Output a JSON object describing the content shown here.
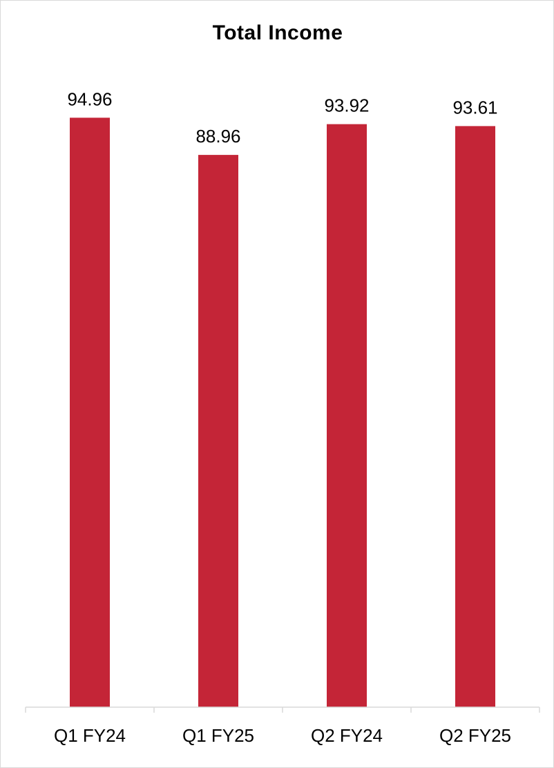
{
  "chart_data": {
    "type": "bar",
    "title": "Total Income",
    "categories": [
      "Q1 FY24",
      "Q1 FY25",
      "Q2 FY24",
      "Q2 FY25"
    ],
    "values": [
      94.96,
      88.96,
      93.92,
      93.61
    ],
    "data_labels": [
      "94.96",
      "88.96",
      "93.92",
      "93.61"
    ],
    "ylim": [
      0,
      100
    ],
    "grid": false,
    "legend": "none",
    "bar_color": "#C42537",
    "axis_color": "#d9d9d9"
  }
}
